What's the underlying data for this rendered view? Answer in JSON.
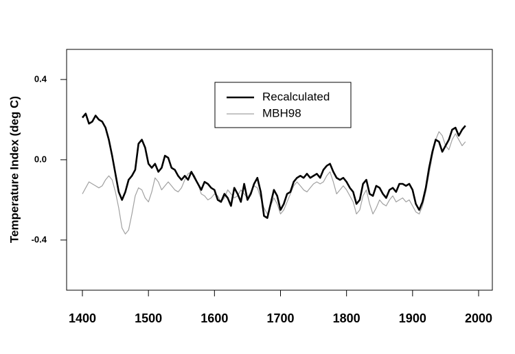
{
  "chart_data": {
    "type": "line",
    "title": "",
    "xlabel": "",
    "ylabel": "Temperature Index (deg C)",
    "xlim": [
      1400,
      2000
    ],
    "ylim": [
      -0.65,
      0.55
    ],
    "x_ticks": [
      "1400",
      "1500",
      "1600",
      "1700",
      "1800",
      "1900",
      "2000"
    ],
    "y_ticks": [
      "-0.4",
      "0.0",
      "0.4"
    ],
    "legend_position": "top-center",
    "grid": false,
    "series": [
      {
        "name": "Recalculated",
        "color": "#000000",
        "points": [
          [
            1400,
            0.21
          ],
          [
            1405,
            0.23
          ],
          [
            1410,
            0.18
          ],
          [
            1415,
            0.19
          ],
          [
            1420,
            0.22
          ],
          [
            1425,
            0.2
          ],
          [
            1430,
            0.19
          ],
          [
            1435,
            0.16
          ],
          [
            1440,
            0.1
          ],
          [
            1445,
            0.02
          ],
          [
            1450,
            -0.07
          ],
          [
            1455,
            -0.16
          ],
          [
            1460,
            -0.2
          ],
          [
            1465,
            -0.16
          ],
          [
            1470,
            -0.1
          ],
          [
            1475,
            -0.08
          ],
          [
            1480,
            -0.05
          ],
          [
            1485,
            0.08
          ],
          [
            1490,
            0.1
          ],
          [
            1495,
            0.06
          ],
          [
            1500,
            -0.02
          ],
          [
            1505,
            -0.04
          ],
          [
            1510,
            -0.02
          ],
          [
            1515,
            -0.06
          ],
          [
            1520,
            -0.04
          ],
          [
            1525,
            0.02
          ],
          [
            1530,
            0.01
          ],
          [
            1535,
            -0.04
          ],
          [
            1540,
            -0.05
          ],
          [
            1545,
            -0.08
          ],
          [
            1550,
            -0.1
          ],
          [
            1555,
            -0.08
          ],
          [
            1560,
            -0.1
          ],
          [
            1565,
            -0.06
          ],
          [
            1570,
            -0.09
          ],
          [
            1575,
            -0.12
          ],
          [
            1580,
            -0.15
          ],
          [
            1585,
            -0.11
          ],
          [
            1590,
            -0.12
          ],
          [
            1595,
            -0.14
          ],
          [
            1600,
            -0.15
          ],
          [
            1605,
            -0.2
          ],
          [
            1610,
            -0.21
          ],
          [
            1615,
            -0.17
          ],
          [
            1620,
            -0.19
          ],
          [
            1625,
            -0.23
          ],
          [
            1630,
            -0.14
          ],
          [
            1635,
            -0.17
          ],
          [
            1640,
            -0.21
          ],
          [
            1645,
            -0.12
          ],
          [
            1650,
            -0.2
          ],
          [
            1655,
            -0.17
          ],
          [
            1660,
            -0.12
          ],
          [
            1665,
            -0.09
          ],
          [
            1670,
            -0.16
          ],
          [
            1675,
            -0.28
          ],
          [
            1680,
            -0.29
          ],
          [
            1685,
            -0.22
          ],
          [
            1690,
            -0.15
          ],
          [
            1695,
            -0.18
          ],
          [
            1700,
            -0.25
          ],
          [
            1705,
            -0.22
          ],
          [
            1710,
            -0.17
          ],
          [
            1715,
            -0.16
          ],
          [
            1720,
            -0.11
          ],
          [
            1725,
            -0.09
          ],
          [
            1730,
            -0.08
          ],
          [
            1735,
            -0.09
          ],
          [
            1740,
            -0.07
          ],
          [
            1745,
            -0.09
          ],
          [
            1750,
            -0.08
          ],
          [
            1755,
            -0.07
          ],
          [
            1760,
            -0.09
          ],
          [
            1765,
            -0.05
          ],
          [
            1770,
            -0.03
          ],
          [
            1775,
            -0.02
          ],
          [
            1780,
            -0.06
          ],
          [
            1785,
            -0.09
          ],
          [
            1790,
            -0.1
          ],
          [
            1795,
            -0.09
          ],
          [
            1800,
            -0.11
          ],
          [
            1805,
            -0.14
          ],
          [
            1810,
            -0.16
          ],
          [
            1815,
            -0.22
          ],
          [
            1820,
            -0.2
          ],
          [
            1825,
            -0.12
          ],
          [
            1830,
            -0.1
          ],
          [
            1835,
            -0.17
          ],
          [
            1840,
            -0.18
          ],
          [
            1845,
            -0.13
          ],
          [
            1850,
            -0.14
          ],
          [
            1855,
            -0.17
          ],
          [
            1860,
            -0.19
          ],
          [
            1865,
            -0.15
          ],
          [
            1870,
            -0.14
          ],
          [
            1875,
            -0.16
          ],
          [
            1880,
            -0.12
          ],
          [
            1885,
            -0.12
          ],
          [
            1890,
            -0.13
          ],
          [
            1895,
            -0.12
          ],
          [
            1900,
            -0.15
          ],
          [
            1905,
            -0.22
          ],
          [
            1910,
            -0.25
          ],
          [
            1915,
            -0.21
          ],
          [
            1920,
            -0.14
          ],
          [
            1925,
            -0.04
          ],
          [
            1930,
            0.04
          ],
          [
            1935,
            0.1
          ],
          [
            1940,
            0.09
          ],
          [
            1945,
            0.04
          ],
          [
            1950,
            0.07
          ],
          [
            1955,
            0.1
          ],
          [
            1960,
            0.15
          ],
          [
            1965,
            0.16
          ],
          [
            1970,
            0.12
          ],
          [
            1975,
            0.15
          ],
          [
            1980,
            0.17
          ]
        ]
      },
      {
        "name": "MBH98",
        "color": "#a0a0a0",
        "points": [
          [
            1400,
            -0.17
          ],
          [
            1405,
            -0.14
          ],
          [
            1410,
            -0.11
          ],
          [
            1415,
            -0.12
          ],
          [
            1420,
            -0.13
          ],
          [
            1425,
            -0.14
          ],
          [
            1430,
            -0.13
          ],
          [
            1435,
            -0.1
          ],
          [
            1440,
            -0.08
          ],
          [
            1445,
            -0.1
          ],
          [
            1450,
            -0.16
          ],
          [
            1455,
            -0.24
          ],
          [
            1460,
            -0.34
          ],
          [
            1465,
            -0.37
          ],
          [
            1470,
            -0.35
          ],
          [
            1475,
            -0.27
          ],
          [
            1480,
            -0.18
          ],
          [
            1485,
            -0.14
          ],
          [
            1490,
            -0.15
          ],
          [
            1495,
            -0.19
          ],
          [
            1500,
            -0.21
          ],
          [
            1505,
            -0.16
          ],
          [
            1510,
            -0.09
          ],
          [
            1515,
            -0.11
          ],
          [
            1520,
            -0.15
          ],
          [
            1525,
            -0.13
          ],
          [
            1530,
            -0.11
          ],
          [
            1535,
            -0.13
          ],
          [
            1540,
            -0.15
          ],
          [
            1545,
            -0.16
          ],
          [
            1550,
            -0.14
          ],
          [
            1555,
            -0.1
          ],
          [
            1560,
            -0.07
          ],
          [
            1565,
            -0.06
          ],
          [
            1570,
            -0.08
          ],
          [
            1575,
            -0.12
          ],
          [
            1580,
            -0.17
          ],
          [
            1585,
            -0.18
          ],
          [
            1590,
            -0.2
          ],
          [
            1595,
            -0.19
          ],
          [
            1600,
            -0.17
          ],
          [
            1605,
            -0.18
          ],
          [
            1610,
            -0.21
          ],
          [
            1615,
            -0.19
          ],
          [
            1620,
            -0.15
          ],
          [
            1625,
            -0.17
          ],
          [
            1630,
            -0.19
          ],
          [
            1635,
            -0.18
          ],
          [
            1640,
            -0.15
          ],
          [
            1645,
            -0.17
          ],
          [
            1650,
            -0.19
          ],
          [
            1655,
            -0.16
          ],
          [
            1660,
            -0.13
          ],
          [
            1665,
            -0.14
          ],
          [
            1670,
            -0.19
          ],
          [
            1675,
            -0.24
          ],
          [
            1680,
            -0.27
          ],
          [
            1685,
            -0.23
          ],
          [
            1690,
            -0.19
          ],
          [
            1695,
            -0.22
          ],
          [
            1700,
            -0.27
          ],
          [
            1705,
            -0.25
          ],
          [
            1710,
            -0.21
          ],
          [
            1715,
            -0.17
          ],
          [
            1720,
            -0.13
          ],
          [
            1725,
            -0.11
          ],
          [
            1730,
            -0.13
          ],
          [
            1735,
            -0.15
          ],
          [
            1740,
            -0.16
          ],
          [
            1745,
            -0.14
          ],
          [
            1750,
            -0.12
          ],
          [
            1755,
            -0.11
          ],
          [
            1760,
            -0.12
          ],
          [
            1765,
            -0.11
          ],
          [
            1770,
            -0.08
          ],
          [
            1775,
            -0.06
          ],
          [
            1780,
            -0.11
          ],
          [
            1785,
            -0.17
          ],
          [
            1790,
            -0.15
          ],
          [
            1795,
            -0.13
          ],
          [
            1800,
            -0.15
          ],
          [
            1805,
            -0.18
          ],
          [
            1810,
            -0.21
          ],
          [
            1815,
            -0.27
          ],
          [
            1820,
            -0.25
          ],
          [
            1825,
            -0.18
          ],
          [
            1830,
            -0.15
          ],
          [
            1835,
            -0.22
          ],
          [
            1840,
            -0.27
          ],
          [
            1845,
            -0.24
          ],
          [
            1850,
            -0.2
          ],
          [
            1855,
            -0.22
          ],
          [
            1860,
            -0.23
          ],
          [
            1865,
            -0.2
          ],
          [
            1870,
            -0.18
          ],
          [
            1875,
            -0.21
          ],
          [
            1880,
            -0.2
          ],
          [
            1885,
            -0.19
          ],
          [
            1890,
            -0.21
          ],
          [
            1895,
            -0.2
          ],
          [
            1900,
            -0.23
          ],
          [
            1905,
            -0.26
          ],
          [
            1910,
            -0.27
          ],
          [
            1915,
            -0.23
          ],
          [
            1920,
            -0.16
          ],
          [
            1925,
            -0.07
          ],
          [
            1930,
            0.02
          ],
          [
            1935,
            0.1
          ],
          [
            1940,
            0.14
          ],
          [
            1945,
            0.12
          ],
          [
            1950,
            0.07
          ],
          [
            1955,
            0.05
          ],
          [
            1960,
            0.1
          ],
          [
            1965,
            0.13
          ],
          [
            1970,
            0.1
          ],
          [
            1975,
            0.07
          ],
          [
            1980,
            0.09
          ]
        ]
      }
    ]
  }
}
